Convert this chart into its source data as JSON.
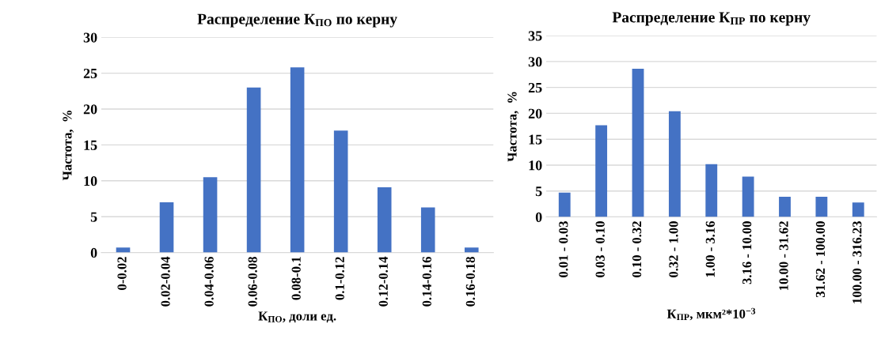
{
  "chart_data": [
    {
      "type": "bar",
      "title": "Распределение К$_{ПО}$ по керну",
      "xlabel": "К$_{ПО}$, доли ед.",
      "ylabel": "Частота,  %",
      "categories": [
        "0-0.02",
        "0.02-0.04",
        "0.04-0.06",
        "0.06-0.08",
        "0.08-0.1",
        "0.1-0.12",
        "0.12-0.14",
        "0.14-0.16",
        "0.16-0.18"
      ],
      "values": [
        0.7,
        7,
        10.5,
        23,
        25.8,
        17,
        9.1,
        6.3,
        0.7
      ],
      "color": "#4472c4",
      "ylim": [
        0,
        30
      ],
      "yticks": [
        0,
        5,
        10,
        15,
        20,
        25,
        30
      ],
      "grid": "y"
    },
    {
      "type": "bar",
      "title": "Распределение К$_{ПР}$ по керну",
      "xlabel": "К$_{ПР}$, мкм²*10$^{−3}$",
      "ylabel": "Частота,  %",
      "categories": [
        "0.01 - 0.03",
        "0.03 - 0.10",
        "0.10 - 0.32",
        "0.32 - 1.00",
        "1.00 - 3.16",
        "3.16 - 10.00",
        "10.00 - 31.62",
        "31.62 - 100.00",
        "100.00 - 316.23"
      ],
      "values": [
        4.7,
        17.7,
        28.6,
        20.4,
        10.2,
        7.8,
        3.9,
        3.9,
        2.8
      ],
      "color": "#4472c4",
      "ylim": [
        0,
        35
      ],
      "yticks": [
        0,
        5,
        10,
        15,
        20,
        25,
        30,
        35
      ],
      "grid": "y"
    }
  ]
}
